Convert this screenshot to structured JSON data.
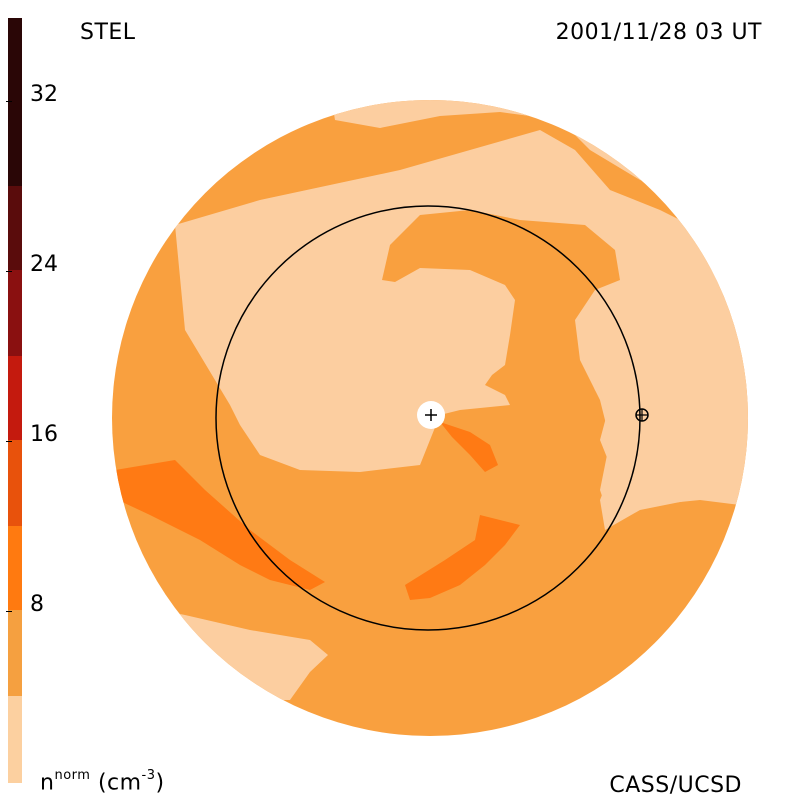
{
  "header": {
    "source": "STEL",
    "timestamp": "2001/11/28 03 UT"
  },
  "footer": {
    "credit": "CASS/UCSD",
    "unit_base": "n",
    "unit_sup": "norm",
    "unit_suffix": "(cm",
    "unit_exp": "-3",
    "unit_close": ")"
  },
  "colorbar": {
    "ticks": [
      "32",
      "24",
      "16",
      "8"
    ],
    "colors": [
      "#2a0606",
      "#5a0c0c",
      "#8a1010",
      "#c41a0e",
      "#e8520c",
      "#ff7a10",
      "#f5a040",
      "#fcd0a0"
    ]
  },
  "map": {
    "colors": {
      "light": "#fccea0",
      "medium": "#f9a03f",
      "dark": "#ff7a14",
      "line": "#000000"
    }
  }
}
